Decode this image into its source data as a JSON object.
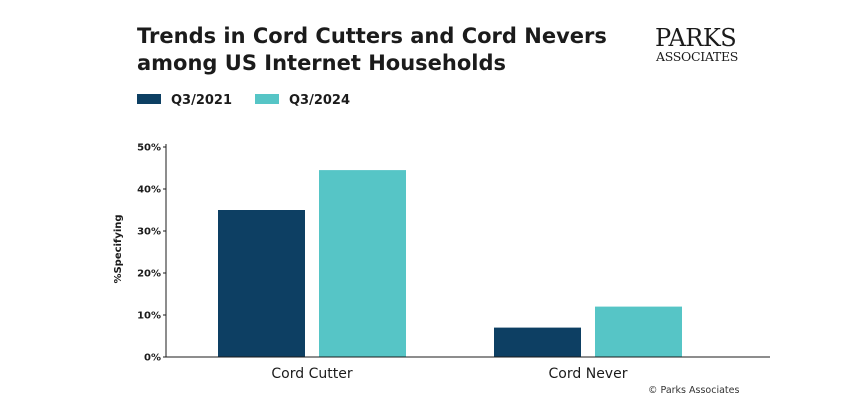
{
  "chart_data": {
    "type": "bar",
    "title": "Trends in Cord Cutters and Cord Nevers among US Internet Households",
    "title_lines": [
      "Trends in Cord Cutters and Cord Nevers",
      "among US Internet Households"
    ],
    "categories": [
      "Cord Cutter",
      "Cord Never"
    ],
    "series": [
      {
        "name": "Q3/2021",
        "values": [
          35,
          7
        ],
        "color": "#0d3f63"
      },
      {
        "name": "Q3/2024",
        "values": [
          44.5,
          12
        ],
        "color": "#56c5c6"
      }
    ],
    "xlabel": "",
    "ylabel": "%Specifying",
    "ylim": [
      0,
      50
    ],
    "yticks": [
      "0%",
      "10%",
      "20%",
      "30%",
      "40%",
      "50%"
    ],
    "grid": false,
    "legend_position": "top-left"
  },
  "branding": {
    "logo_top": "PARKS",
    "logo_bottom": "ASSOCIATES",
    "copyright": "© Parks Associates"
  },
  "colors": {
    "axis": "#1b1b1b"
  }
}
